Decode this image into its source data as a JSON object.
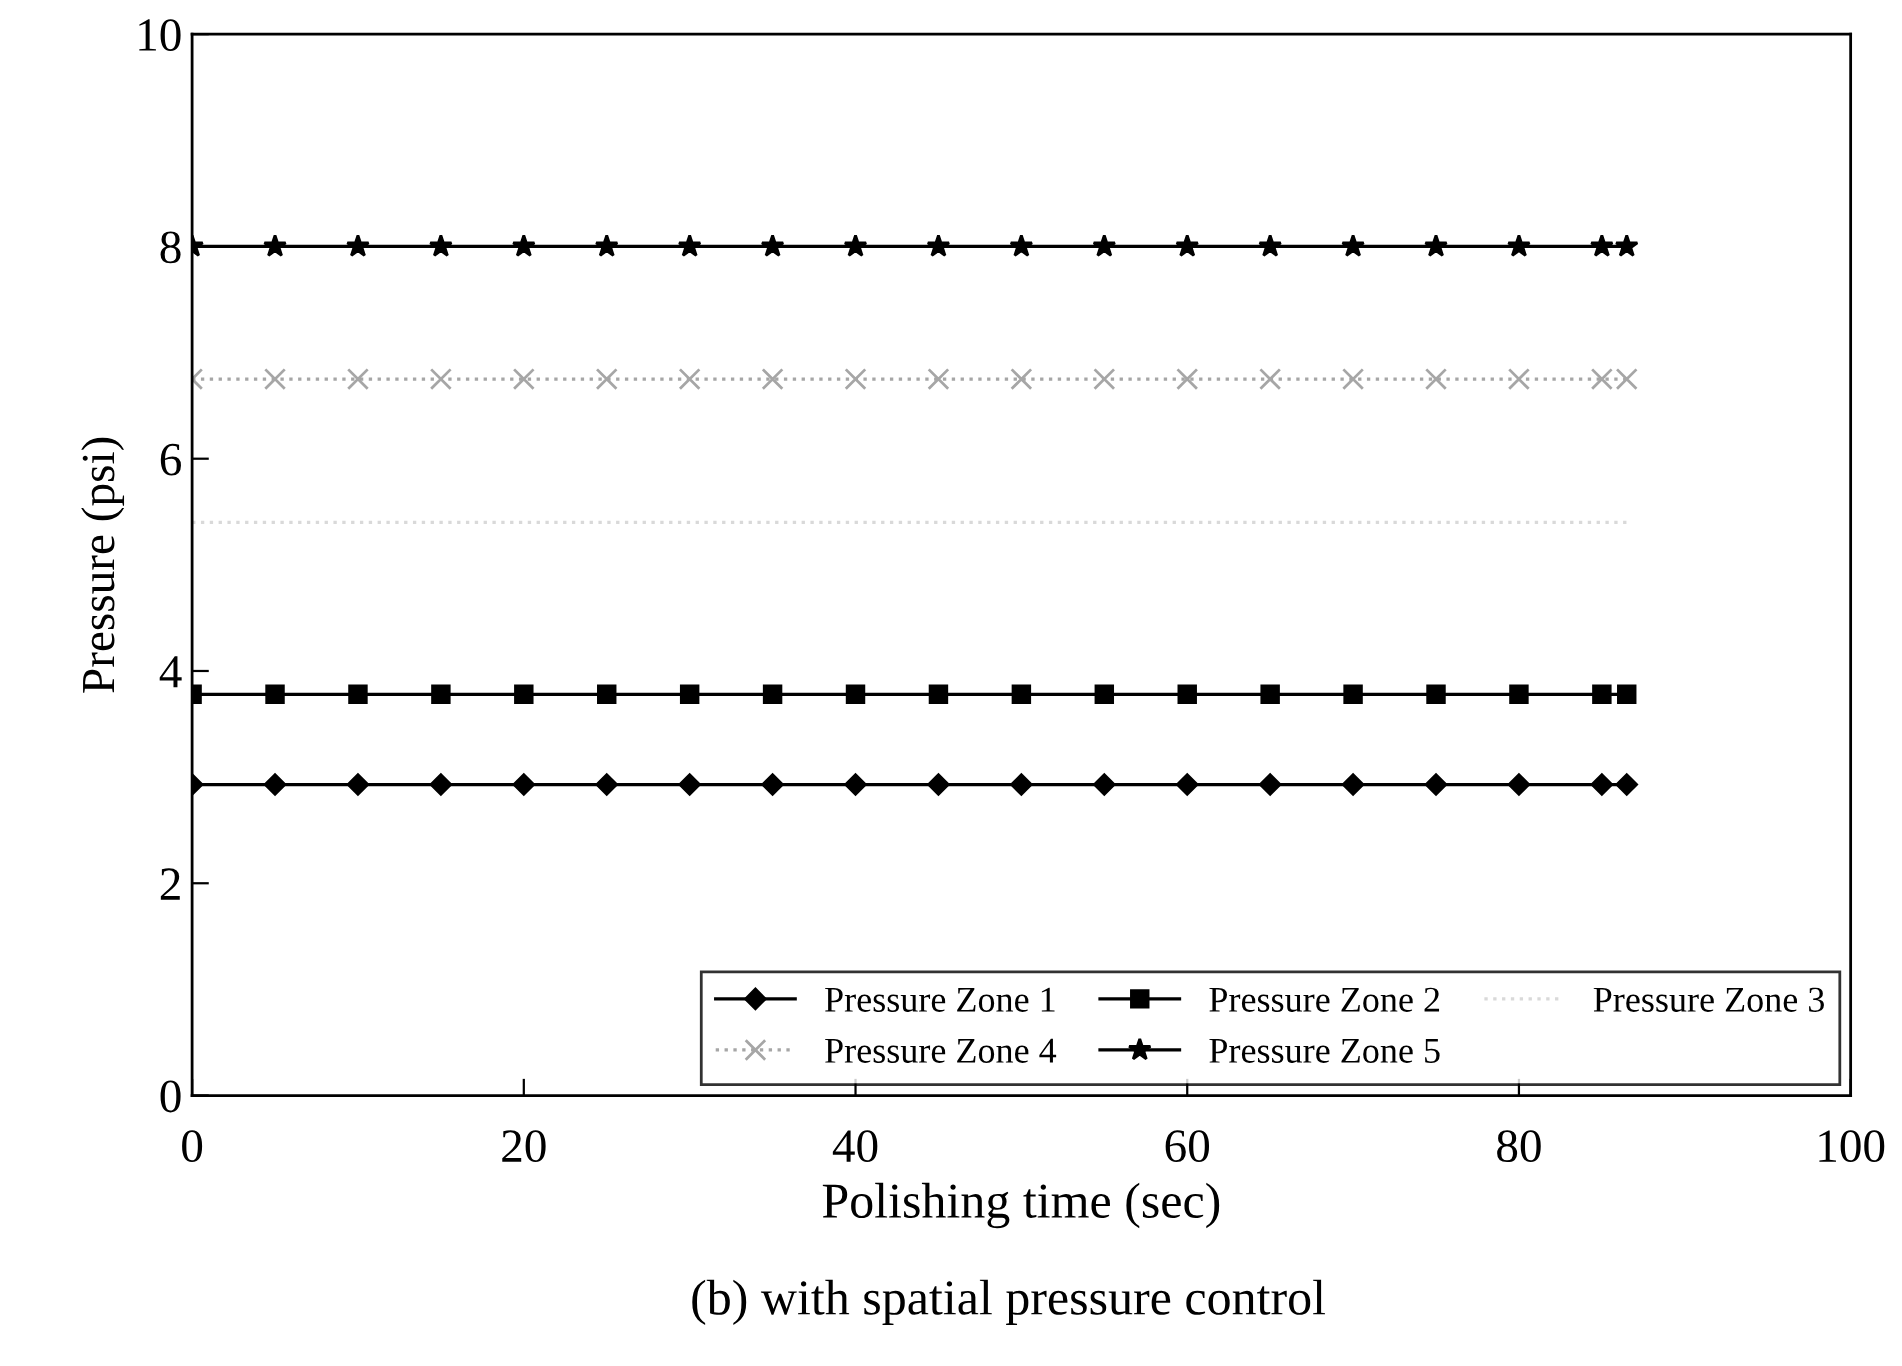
{
  "chart_data": {
    "type": "line",
    "xlabel": "Polishing time (sec)",
    "ylabel": "Pressure (psi)",
    "annotations": [
      "(b) with spatial pressure control"
    ],
    "x": [
      0,
      5,
      10,
      15,
      20,
      25,
      30,
      35,
      40,
      45,
      50,
      55,
      60,
      65,
      70,
      75,
      80,
      85,
      86.5
    ],
    "xlim": [
      0,
      100
    ],
    "xticks": [
      0,
      20,
      40,
      60,
      80,
      100
    ],
    "ylim": [
      0,
      10
    ],
    "yticks": [
      0,
      2,
      4,
      6,
      8,
      10
    ],
    "grid": false,
    "legend": "bottom right",
    "series": [
      {
        "name": "Pressure Zone 1",
        "color": "#000000",
        "marker": "diamond",
        "line_style": "solid",
        "values": [
          2.93,
          2.93,
          2.93,
          2.93,
          2.93,
          2.93,
          2.93,
          2.93,
          2.93,
          2.93,
          2.93,
          2.93,
          2.93,
          2.93,
          2.93,
          2.93,
          2.93,
          2.93,
          2.93
        ]
      },
      {
        "name": "Pressure Zone 2",
        "color": "#000000",
        "marker": "square",
        "line_style": "solid",
        "values": [
          3.78,
          3.78,
          3.78,
          3.78,
          3.78,
          3.78,
          3.78,
          3.78,
          3.78,
          3.78,
          3.78,
          3.78,
          3.78,
          3.78,
          3.78,
          3.78,
          3.78,
          3.78,
          3.78
        ]
      },
      {
        "name": "Pressure Zone 3",
        "color": "#d9d9d9",
        "marker": "none",
        "line_style": "dotted",
        "values": [
          5.4,
          5.4,
          5.4,
          5.4,
          5.4,
          5.4,
          5.4,
          5.4,
          5.4,
          5.4,
          5.4,
          5.4,
          5.4,
          5.4,
          5.4,
          5.4,
          5.4,
          5.4,
          5.4
        ]
      },
      {
        "name": "Pressure Zone 4",
        "color": "#a6a6a6",
        "marker": "cross",
        "line_style": "dotted",
        "values": [
          6.75,
          6.75,
          6.75,
          6.75,
          6.75,
          6.75,
          6.75,
          6.75,
          6.75,
          6.75,
          6.75,
          6.75,
          6.75,
          6.75,
          6.75,
          6.75,
          6.75,
          6.75,
          6.75
        ]
      },
      {
        "name": "Pressure Zone 5",
        "color": "#000000",
        "marker": "star",
        "line_style": "solid",
        "values": [
          8.0,
          8.0,
          8.0,
          8.0,
          8.0,
          8.0,
          8.0,
          8.0,
          8.0,
          8.0,
          8.0,
          8.0,
          8.0,
          8.0,
          8.0,
          8.0,
          8.0,
          8.0,
          8.0
        ]
      }
    ]
  }
}
